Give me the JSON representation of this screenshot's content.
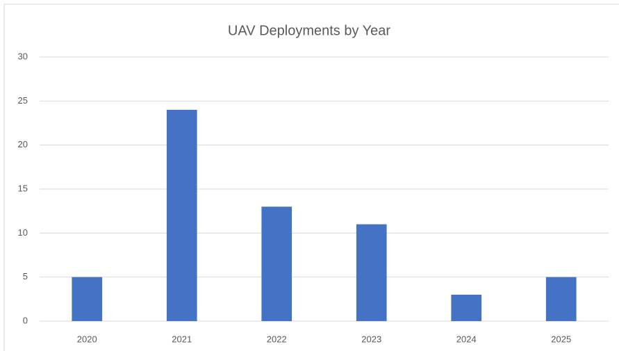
{
  "chart_data": {
    "type": "bar",
    "title": "UAV Deployments by Year",
    "categories": [
      "2020",
      "2021",
      "2022",
      "2023",
      "2024",
      "2025"
    ],
    "values": [
      5,
      24,
      13,
      11,
      3,
      5
    ],
    "color": "#4472c4",
    "ylim": [
      0,
      30
    ],
    "yticks": [
      0,
      5,
      10,
      15,
      20,
      25,
      30
    ],
    "grid": true
  }
}
